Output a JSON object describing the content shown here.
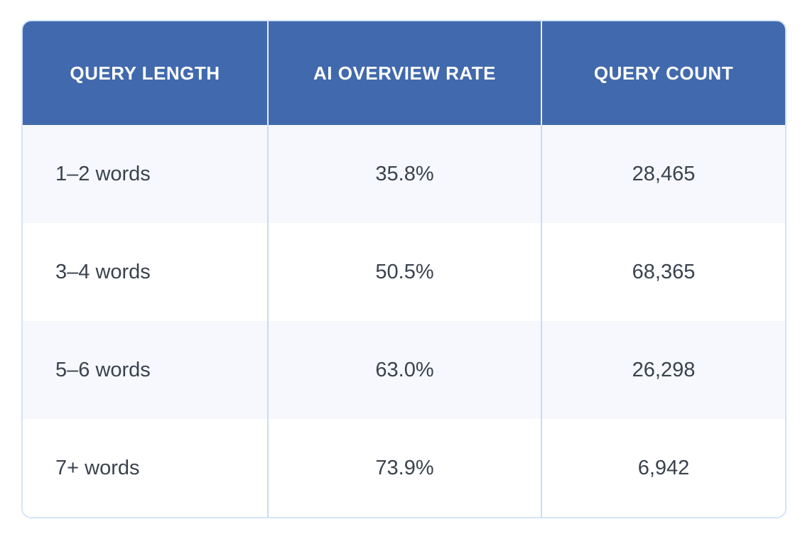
{
  "table": {
    "columns": [
      {
        "label": "QUERY LENGTH"
      },
      {
        "label": "AI OVERVIEW RATE"
      },
      {
        "label": "QUERY COUNT"
      }
    ],
    "rows": [
      {
        "query_length": "1–2 words",
        "ai_overview_rate": "35.8%",
        "query_count": "28,465"
      },
      {
        "query_length": "3–4 words",
        "ai_overview_rate": "50.5%",
        "query_count": "68,365"
      },
      {
        "query_length": "5–6 words",
        "ai_overview_rate": "63.0%",
        "query_count": "26,298"
      },
      {
        "query_length": "7+ words",
        "ai_overview_rate": "73.9%",
        "query_count": "6,942"
      }
    ],
    "colors": {
      "header_bg": "#4169ad",
      "header_text": "#ffffff",
      "header_divider": "#e7eefa",
      "row_tint_bg": "#f6f8fd",
      "row_plain_bg": "#ffffff",
      "body_divider": "#c6dcf7",
      "outer_border": "#d4e4fb",
      "body_text": "#3a424d"
    }
  },
  "chart_data": {
    "type": "table",
    "title": "",
    "columns": [
      "QUERY LENGTH",
      "AI OVERVIEW RATE",
      "QUERY COUNT"
    ],
    "categories": [
      "1–2 words",
      "3–4 words",
      "5–6 words",
      "7+ words"
    ],
    "series": [
      {
        "name": "AI Overview Rate (%)",
        "values": [
          35.8,
          50.5,
          63.0,
          73.9
        ]
      },
      {
        "name": "Query Count",
        "values": [
          28465,
          68365,
          26298,
          6942
        ]
      }
    ]
  }
}
